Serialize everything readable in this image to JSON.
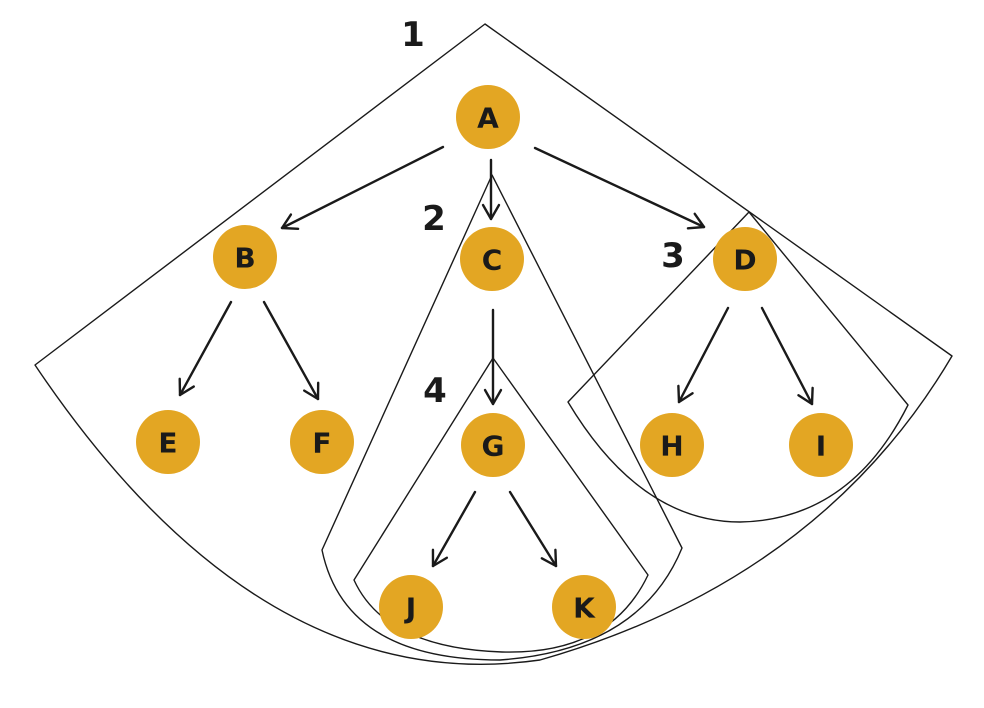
{
  "colors": {
    "node_fill": "#E3A623",
    "ink": "#1a1a1a"
  },
  "nodes": [
    {
      "id": "A",
      "label": "A"
    },
    {
      "id": "B",
      "label": "B"
    },
    {
      "id": "C",
      "label": "C"
    },
    {
      "id": "D",
      "label": "D"
    },
    {
      "id": "E",
      "label": "E"
    },
    {
      "id": "F",
      "label": "F"
    },
    {
      "id": "G",
      "label": "G"
    },
    {
      "id": "H",
      "label": "H"
    },
    {
      "id": "I",
      "label": "I"
    },
    {
      "id": "J",
      "label": "J"
    },
    {
      "id": "K",
      "label": "K"
    }
  ],
  "edges": [
    {
      "from": "A",
      "to": "B"
    },
    {
      "from": "A",
      "to": "C"
    },
    {
      "from": "A",
      "to": "D"
    },
    {
      "from": "B",
      "to": "E"
    },
    {
      "from": "B",
      "to": "F"
    },
    {
      "from": "C",
      "to": "G"
    },
    {
      "from": "D",
      "to": "H"
    },
    {
      "from": "D",
      "to": "I"
    },
    {
      "from": "G",
      "to": "J"
    },
    {
      "from": "G",
      "to": "K"
    }
  ],
  "regions": [
    {
      "id": "1",
      "label": "1"
    },
    {
      "id": "2",
      "label": "2"
    },
    {
      "id": "3",
      "label": "3"
    },
    {
      "id": "4",
      "label": "4"
    }
  ]
}
